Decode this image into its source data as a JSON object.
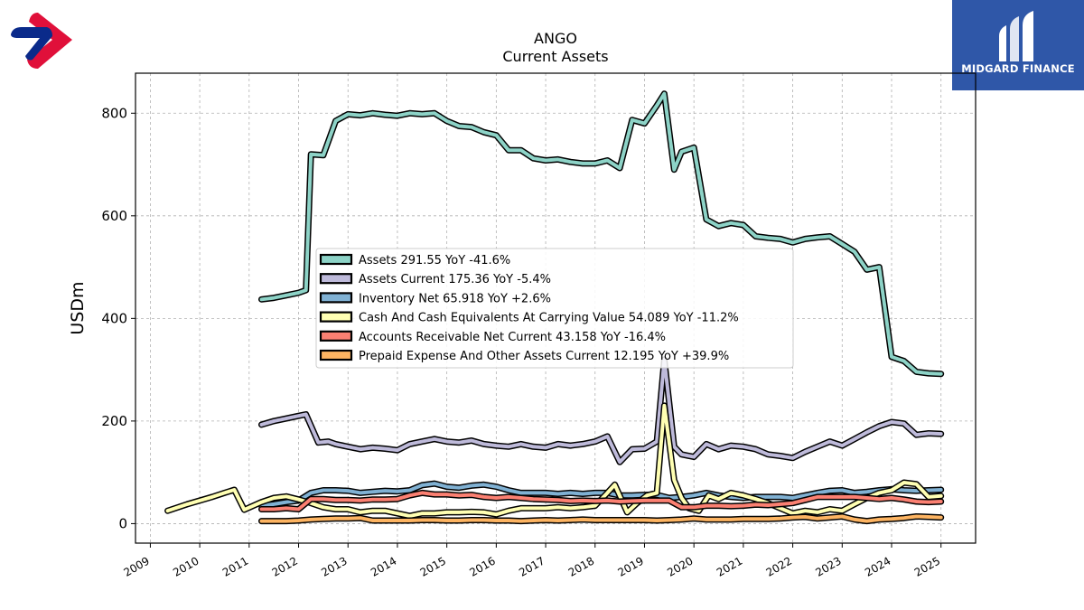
{
  "branding": {
    "name": "MIDGARD FINANCE",
    "left_logo_icon": "red-blue-ribbon-logo-icon",
    "right_logo_icon": "midgard-m-logo-icon",
    "brand_color": "#2f57a8"
  },
  "chart_data": {
    "type": "line",
    "title": "ANGO",
    "subtitle": "Current  Assets",
    "ylabel": "USDm",
    "xlabel": "",
    "xlim": [
      2008.7,
      2025.7
    ],
    "ylim": [
      -38,
      878
    ],
    "yticks": [
      0,
      200,
      400,
      600,
      800
    ],
    "xticks": [
      "2009",
      "2010",
      "2011",
      "2012",
      "2013",
      "2014",
      "2015",
      "2016",
      "2017",
      "2018",
      "2019",
      "2020",
      "2021",
      "2022",
      "2023",
      "2024",
      "2025"
    ],
    "grid": true,
    "legend_position": "center",
    "series": [
      {
        "name": "Assets  291.55 YoY -41.6%",
        "color": "#8dd3c7",
        "x": [
          2011.25,
          2011.5,
          2011.75,
          2012.0,
          2012.15,
          2012.25,
          2012.5,
          2012.75,
          2013.0,
          2013.25,
          2013.5,
          2013.75,
          2014.0,
          2014.25,
          2014.5,
          2014.75,
          2015.0,
          2015.25,
          2015.5,
          2015.75,
          2016.0,
          2016.25,
          2016.5,
          2016.75,
          2017.0,
          2017.25,
          2017.5,
          2017.75,
          2018.0,
          2018.25,
          2018.5,
          2018.75,
          2019.0,
          2019.25,
          2019.4,
          2019.6,
          2019.75,
          2020.0,
          2020.25,
          2020.5,
          2020.75,
          2021.0,
          2021.25,
          2021.5,
          2021.75,
          2022.0,
          2022.25,
          2022.5,
          2022.75,
          2023.0,
          2023.25,
          2023.5,
          2023.75,
          2024.0,
          2024.25,
          2024.5,
          2024.75,
          2025.0
        ],
        "y": [
          437,
          440,
          445,
          450,
          455,
          720,
          718,
          785,
          798,
          796,
          800,
          797,
          795,
          800,
          798,
          800,
          785,
          775,
          773,
          763,
          757,
          728,
          728,
          712,
          708,
          710,
          705,
          702,
          702,
          708,
          693,
          787,
          780,
          815,
          838,
          690,
          725,
          733,
          593,
          580,
          586,
          582,
          560,
          557,
          555,
          548,
          555,
          558,
          560,
          545,
          530,
          495,
          500,
          325,
          317,
          296,
          293,
          292
        ]
      },
      {
        "name": "Assets Current  175.36 YoY -5.4%",
        "color": "#bebada",
        "x": [
          2011.25,
          2011.5,
          2011.75,
          2012.0,
          2012.15,
          2012.4,
          2012.6,
          2012.75,
          2013.0,
          2013.25,
          2013.5,
          2013.75,
          2014.0,
          2014.25,
          2014.5,
          2014.75,
          2015.0,
          2015.25,
          2015.5,
          2015.75,
          2016.0,
          2016.25,
          2016.5,
          2016.75,
          2017.0,
          2017.25,
          2017.5,
          2017.75,
          2018.0,
          2018.25,
          2018.5,
          2018.75,
          2019.0,
          2019.25,
          2019.4,
          2019.6,
          2019.75,
          2020.0,
          2020.25,
          2020.5,
          2020.75,
          2021.0,
          2021.25,
          2021.5,
          2021.75,
          2022.0,
          2022.25,
          2022.5,
          2022.75,
          2023.0,
          2023.25,
          2023.5,
          2023.75,
          2024.0,
          2024.25,
          2024.5,
          2024.75,
          2025.0
        ],
        "y": [
          193,
          200,
          205,
          210,
          213,
          158,
          160,
          155,
          150,
          145,
          148,
          146,
          143,
          155,
          160,
          165,
          160,
          158,
          162,
          155,
          152,
          150,
          155,
          150,
          148,
          155,
          152,
          155,
          160,
          170,
          120,
          145,
          146,
          160,
          320,
          150,
          135,
          130,
          155,
          145,
          152,
          150,
          145,
          135,
          132,
          128,
          140,
          150,
          160,
          152,
          165,
          178,
          190,
          198,
          195,
          173,
          176,
          175
        ]
      },
      {
        "name": "Inventory Net  65.918 YoY +2.6%",
        "color": "#80b1d3",
        "x": [
          2011.25,
          2011.5,
          2011.75,
          2012.0,
          2012.25,
          2012.5,
          2012.75,
          2013.0,
          2013.25,
          2013.5,
          2013.75,
          2014.0,
          2014.25,
          2014.5,
          2014.75,
          2015.0,
          2015.25,
          2015.5,
          2015.75,
          2016.0,
          2016.25,
          2016.5,
          2016.75,
          2017.0,
          2017.25,
          2017.5,
          2017.75,
          2018.0,
          2018.25,
          2018.5,
          2018.75,
          2019.0,
          2019.25,
          2019.5,
          2019.75,
          2020.0,
          2020.25,
          2020.5,
          2020.75,
          2021.0,
          2021.25,
          2021.5,
          2021.75,
          2022.0,
          2022.25,
          2022.5,
          2022.75,
          2023.0,
          2023.25,
          2023.5,
          2023.75,
          2024.0,
          2024.25,
          2024.5,
          2024.75,
          2025.0
        ],
        "y": [
          35,
          38,
          42,
          45,
          60,
          65,
          65,
          64,
          60,
          62,
          64,
          63,
          65,
          75,
          78,
          72,
          70,
          74,
          76,
          72,
          65,
          60,
          60,
          60,
          58,
          60,
          58,
          60,
          60,
          55,
          55,
          56,
          56,
          50,
          52,
          55,
          60,
          55,
          52,
          50,
          52,
          52,
          52,
          50,
          55,
          60,
          64,
          65,
          60,
          62,
          65,
          67,
          65,
          64,
          65,
          66
        ]
      },
      {
        "name": "Cash And Cash Equivalents At Carrying Value  54.089 YoY -11.2%",
        "color": "#ffffb3",
        "x": [
          2009.35,
          2009.75,
          2010.0,
          2010.25,
          2010.5,
          2010.7,
          2010.9,
          2011.25,
          2011.5,
          2011.75,
          2012.0,
          2012.25,
          2012.5,
          2012.75,
          2013.0,
          2013.25,
          2013.5,
          2013.75,
          2014.0,
          2014.25,
          2014.5,
          2014.75,
          2015.0,
          2015.25,
          2015.5,
          2015.75,
          2016.0,
          2016.25,
          2016.5,
          2016.75,
          2017.0,
          2017.25,
          2017.5,
          2017.75,
          2018.0,
          2018.25,
          2018.4,
          2018.65,
          2018.85,
          2019.05,
          2019.25,
          2019.4,
          2019.6,
          2019.75,
          2019.9,
          2020.1,
          2020.3,
          2020.5,
          2020.75,
          2021.0,
          2021.25,
          2021.5,
          2021.75,
          2022.0,
          2022.25,
          2022.5,
          2022.75,
          2023.0,
          2023.25,
          2023.5,
          2023.75,
          2024.0,
          2024.25,
          2024.5,
          2024.75,
          2025.0
        ],
        "y": [
          25,
          38,
          45,
          52,
          60,
          66,
          27,
          42,
          50,
          53,
          47,
          40,
          32,
          28,
          28,
          22,
          25,
          25,
          20,
          15,
          20,
          20,
          22,
          22,
          23,
          22,
          18,
          25,
          30,
          30,
          30,
          32,
          30,
          32,
          35,
          60,
          76,
          22,
          40,
          55,
          60,
          230,
          85,
          50,
          30,
          25,
          55,
          48,
          60,
          55,
          48,
          40,
          30,
          20,
          25,
          22,
          28,
          25,
          38,
          50,
          60,
          65,
          80,
          77,
          52,
          54
        ]
      },
      {
        "name": "Accounts Receivable Net Current  43.158 YoY -16.4%",
        "color": "#fb8072",
        "x": [
          2011.25,
          2011.5,
          2011.75,
          2012.0,
          2012.25,
          2012.5,
          2012.75,
          2013.0,
          2013.25,
          2013.5,
          2013.75,
          2014.0,
          2014.25,
          2014.5,
          2014.75,
          2015.0,
          2015.25,
          2015.5,
          2015.75,
          2016.0,
          2016.25,
          2016.5,
          2016.75,
          2017.0,
          2017.25,
          2017.5,
          2017.75,
          2018.0,
          2018.25,
          2018.5,
          2018.75,
          2019.0,
          2019.25,
          2019.5,
          2019.75,
          2020.0,
          2020.25,
          2020.5,
          2020.75,
          2021.0,
          2021.25,
          2021.5,
          2021.75,
          2022.0,
          2022.25,
          2022.5,
          2022.75,
          2023.0,
          2023.25,
          2023.5,
          2023.75,
          2024.0,
          2024.25,
          2024.5,
          2024.75,
          2025.0
        ],
        "y": [
          28,
          28,
          30,
          28,
          48,
          48,
          46,
          46,
          45,
          47,
          47,
          48,
          55,
          60,
          57,
          57,
          55,
          56,
          52,
          50,
          52,
          50,
          48,
          47,
          46,
          44,
          45,
          44,
          45,
          43,
          44,
          45,
          45,
          45,
          32,
          32,
          35,
          35,
          34,
          35,
          37,
          36,
          38,
          40,
          46,
          52,
          52,
          52,
          52,
          50,
          48,
          50,
          47,
          43,
          42,
          43
        ]
      },
      {
        "name": "Prepaid Expense And Other Assets Current  12.195 YoY +39.9%",
        "color": "#fdb462",
        "x": [
          2011.25,
          2011.5,
          2011.75,
          2012.0,
          2012.25,
          2012.5,
          2012.75,
          2013.0,
          2013.25,
          2013.5,
          2013.75,
          2014.0,
          2014.25,
          2014.5,
          2014.75,
          2015.0,
          2015.25,
          2015.5,
          2015.75,
          2016.0,
          2016.25,
          2016.5,
          2016.75,
          2017.0,
          2017.25,
          2017.5,
          2017.75,
          2018.0,
          2018.25,
          2018.5,
          2018.75,
          2019.0,
          2019.25,
          2019.5,
          2019.75,
          2020.0,
          2020.25,
          2020.5,
          2020.75,
          2021.0,
          2021.25,
          2021.5,
          2021.75,
          2022.0,
          2022.25,
          2022.5,
          2022.75,
          2023.0,
          2023.25,
          2023.5,
          2023.75,
          2024.0,
          2024.25,
          2024.5,
          2024.75,
          2025.0
        ],
        "y": [
          5,
          5,
          5,
          6,
          8,
          9,
          10,
          10,
          11,
          6,
          6,
          6,
          6,
          7,
          7,
          6,
          6,
          7,
          7,
          6,
          6,
          5,
          6,
          7,
          6,
          7,
          8,
          7,
          7,
          7,
          7,
          7,
          6,
          7,
          8,
          10,
          8,
          8,
          8,
          9,
          9,
          9,
          10,
          12,
          13,
          10,
          12,
          14,
          8,
          5,
          8,
          9,
          11,
          14,
          13,
          12
        ]
      }
    ]
  }
}
